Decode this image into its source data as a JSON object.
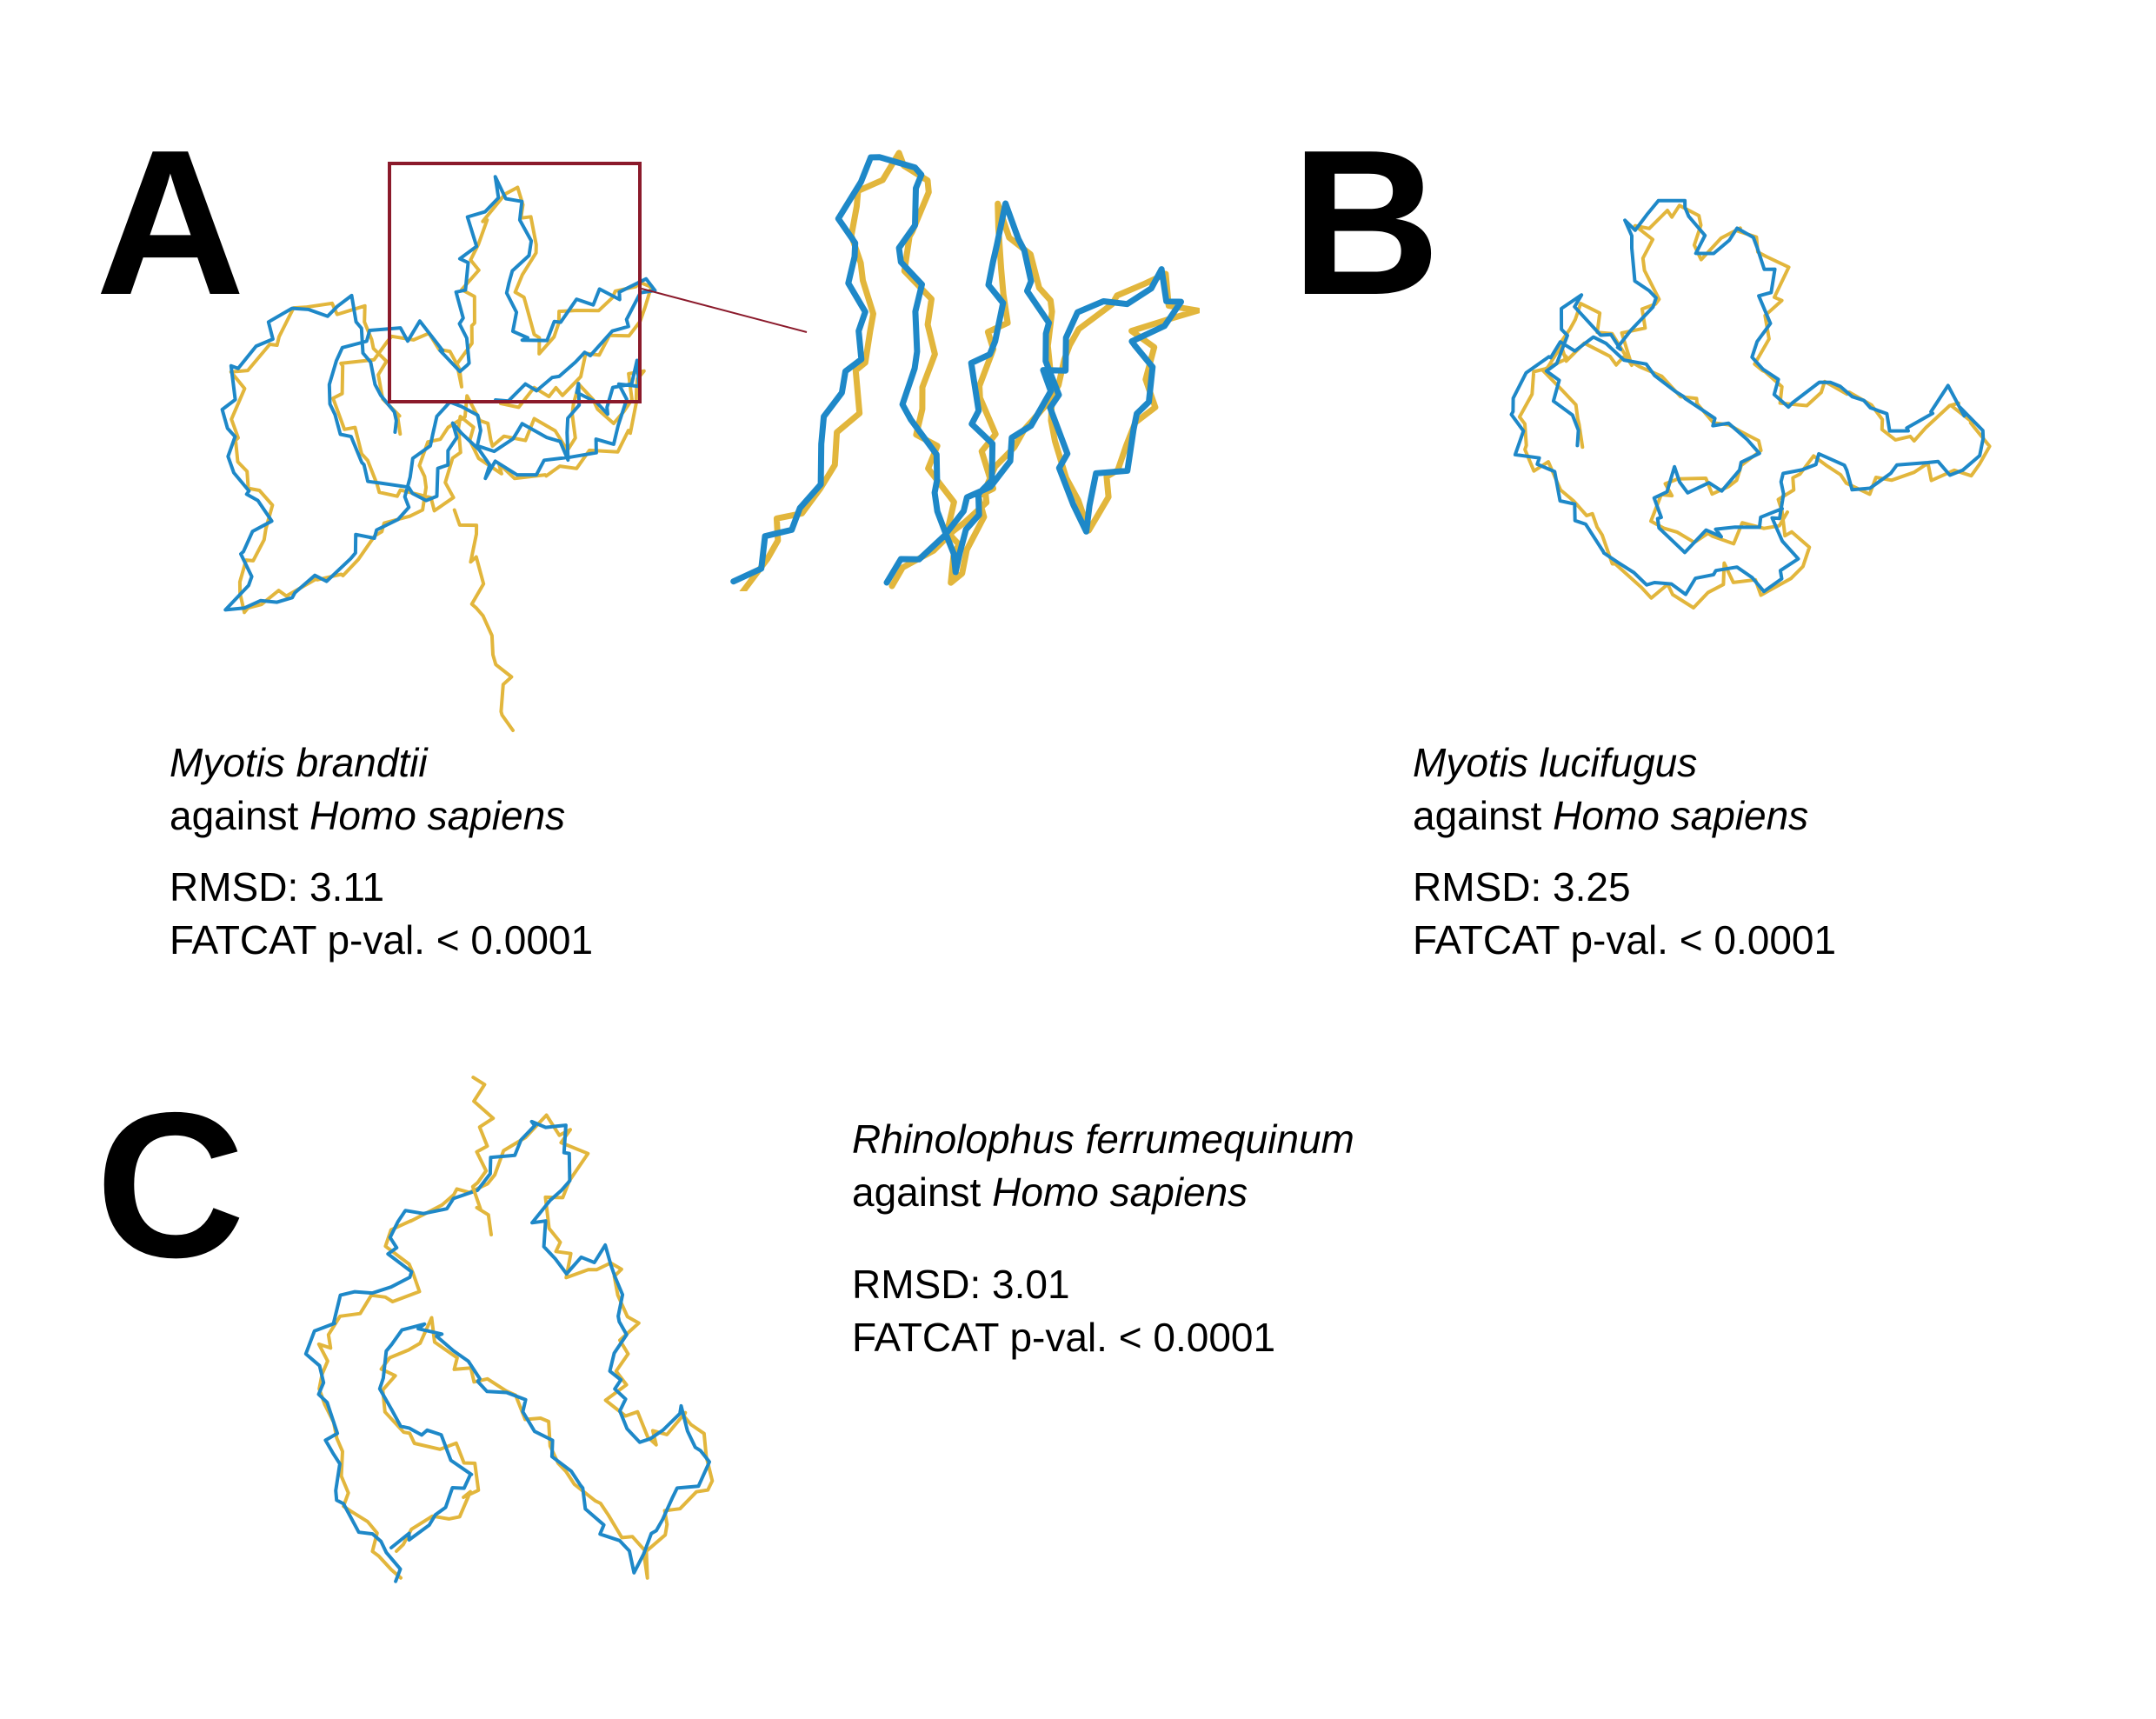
{
  "colors": {
    "blue": "#1E88C8",
    "gold": "#E2B63C",
    "zoom_box": "#8B1A2B"
  },
  "panels": [
    {
      "letter": "A",
      "species": "Myotis brandtii",
      "against": "against ",
      "reference": "Homo sapiens",
      "rmsd": "RMSD: 3.11",
      "pval": "FATCAT p-val. < 0.0001"
    },
    {
      "letter": "B",
      "species": "Myotis lucifugus",
      "against": "against ",
      "reference": "Homo sapiens",
      "rmsd": "RMSD: 3.25",
      "pval": "FATCAT p-val. < 0.0001"
    },
    {
      "letter": "C",
      "species": "Rhinolophus ferrumequinum",
      "against": "against ",
      "reference": "Homo sapiens",
      "rmsd": "RMSD: 3.01",
      "pval": "FATCAT p-val. < 0.0001"
    }
  ]
}
